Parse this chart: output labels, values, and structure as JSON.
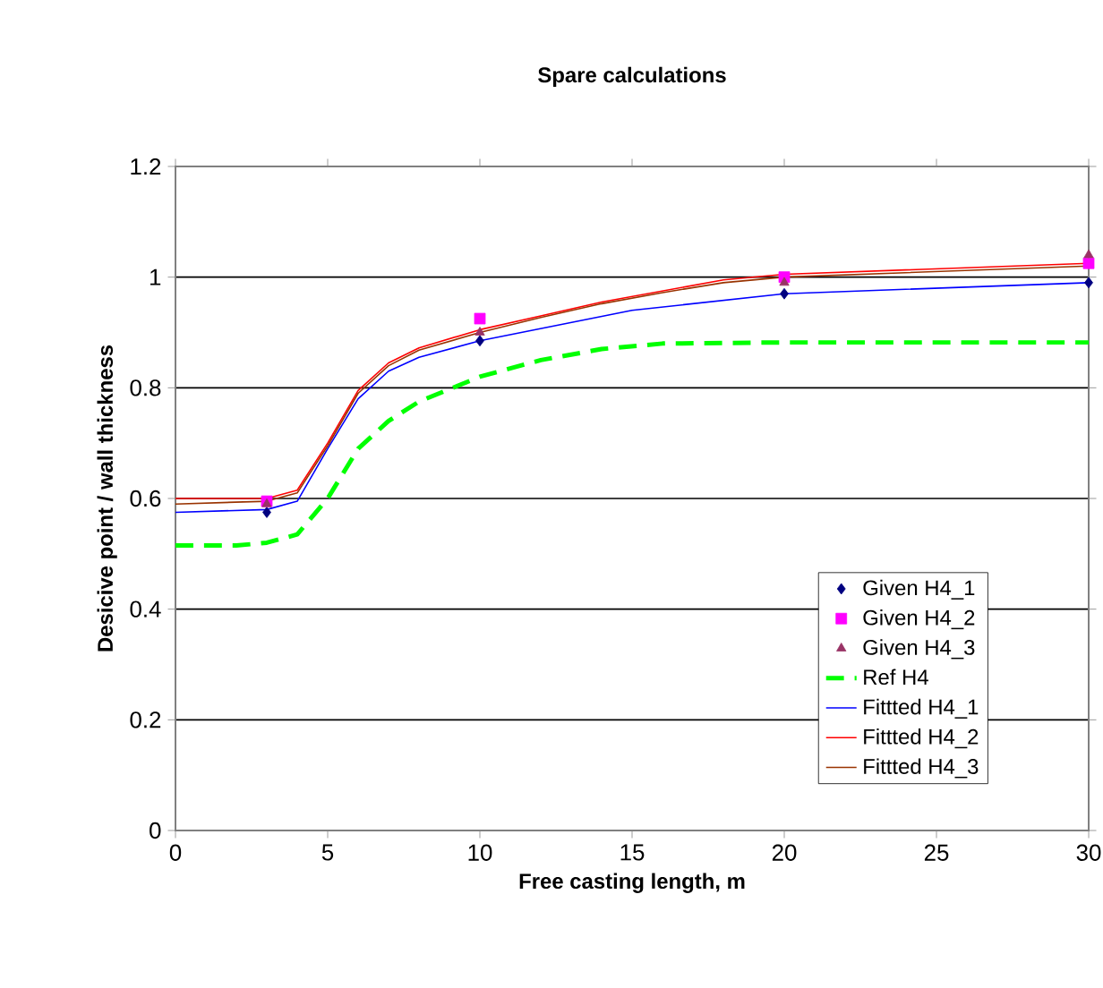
{
  "chart_data": {
    "type": "line",
    "title": "Spare calculations",
    "xlabel": "Free casting length, m",
    "ylabel": "Desicive point / wall thickness",
    "xlim": [
      0,
      30
    ],
    "xticks": [
      0,
      5,
      10,
      15,
      20,
      25,
      30
    ],
    "ylim": [
      0,
      1.2
    ],
    "yticks": [
      0,
      0.2,
      0.4,
      0.6,
      0.8,
      1,
      1.2
    ],
    "grid": "y",
    "legend": "bottom right",
    "series": [
      {
        "name": "Given H4_1",
        "type": "scatter",
        "marker": "diamond",
        "color": "#000080",
        "x": [
          3,
          10,
          20,
          30
        ],
        "values": [
          0.575,
          0.885,
          0.97,
          0.99
        ]
      },
      {
        "name": "Given H4_2",
        "type": "scatter",
        "marker": "square",
        "color": "#ff00ff",
        "x": [
          3,
          10,
          20,
          30
        ],
        "values": [
          0.595,
          0.925,
          1.0,
          1.025
        ]
      },
      {
        "name": "Given H4_3",
        "type": "scatter",
        "marker": "triangle",
        "color": "#993366",
        "x": [
          3,
          10,
          20,
          30
        ],
        "values": [
          0.59,
          0.9,
          0.99,
          1.04
        ]
      },
      {
        "name": "Ref H4",
        "line_style": "dashed",
        "color": "#00ff00",
        "x": [
          0,
          2,
          3,
          4,
          5,
          6,
          7,
          8,
          10,
          12,
          14,
          16,
          20,
          30
        ],
        "values": [
          0.515,
          0.515,
          0.52,
          0.535,
          0.6,
          0.69,
          0.74,
          0.775,
          0.82,
          0.85,
          0.87,
          0.88,
          0.882,
          0.882
        ]
      },
      {
        "name": "Fittted H4_1",
        "line_style": "solid",
        "color": "#0000ff",
        "x": [
          0,
          3,
          4,
          5,
          6,
          7,
          8,
          10,
          15,
          20,
          30
        ],
        "values": [
          0.575,
          0.58,
          0.595,
          0.69,
          0.78,
          0.83,
          0.855,
          0.885,
          0.94,
          0.97,
          0.99
        ]
      },
      {
        "name": "Fittted H4_2",
        "line_style": "solid",
        "color": "#ff0000",
        "x": [
          0,
          3,
          4,
          5,
          6,
          7,
          8,
          10,
          12,
          14,
          16,
          18,
          20,
          30
        ],
        "values": [
          0.6,
          0.6,
          0.615,
          0.7,
          0.795,
          0.845,
          0.872,
          0.905,
          0.93,
          0.955,
          0.975,
          0.995,
          1.005,
          1.025
        ]
      },
      {
        "name": "Fittted H4_3",
        "line_style": "solid",
        "color": "#993300",
        "x": [
          0,
          3,
          4,
          5,
          6,
          7,
          8,
          10,
          12,
          14,
          16,
          18,
          20,
          30
        ],
        "values": [
          0.59,
          0.595,
          0.61,
          0.695,
          0.79,
          0.84,
          0.868,
          0.9,
          0.927,
          0.952,
          0.972,
          0.99,
          1.0,
          1.02
        ]
      }
    ]
  }
}
